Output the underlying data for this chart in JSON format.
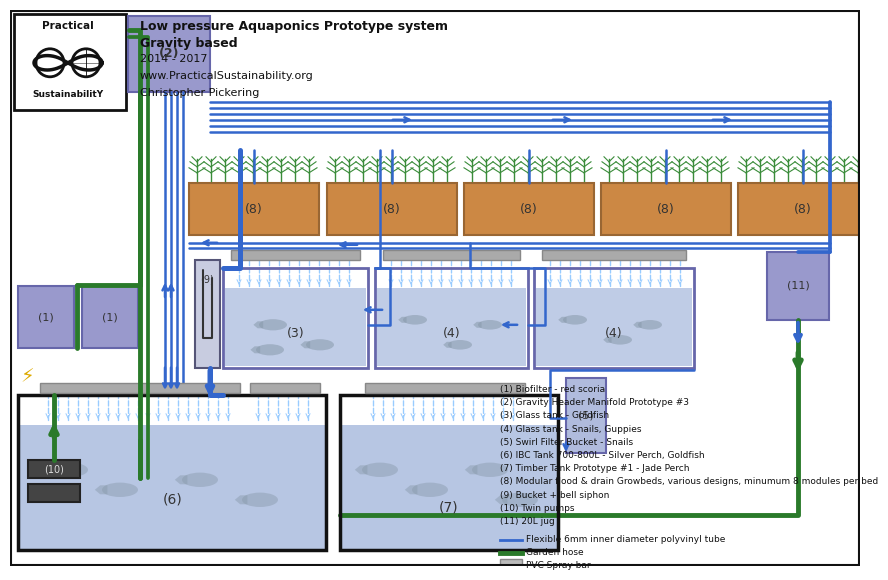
{
  "title_lines": [
    "Low pressure Aquaponics Prototype system",
    "Gravity based",
    "2014 - 2017",
    "www.PracticalSustainability.org",
    "Christopher Pickering"
  ],
  "legend_items": [
    "(1) Biofilter - red scoria",
    "(2) Gravity Header Manifold Prototype #3",
    "(3) Glass tank - Goldfish",
    "(4) Glass tank - Snails, Guppies",
    "(5) Swirl Filter Bucket - Snails",
    "(6) IBC Tank 700-800L - Silver Perch, Goldfish",
    "(7) Timber Tank Prototype #1 - Jade Perch",
    "(8) Modular flood & drain Growbeds, various designs, minumum 8 modules per bed",
    "(9) Bucket + bell siphon",
    "(10) Twin pumps",
    "(11) 20L jug"
  ],
  "colors": {
    "bg": "#ffffff",
    "blue": "#3366cc",
    "green": "#2a7a2a",
    "purple": "#9999cc",
    "purple_border": "#6666aa",
    "tan": "#cc8844",
    "tan_border": "#996633",
    "fish_fill": "#c0c8e8",
    "fish_border": "#6666aa",
    "spray": "#aaaaaa",
    "spray_border": "#888888",
    "water_blue": "#b0c0e0",
    "light_spray": "#99ccff",
    "ibc_fill": "#c0c8e8",
    "timber_border": "#555533",
    "timber_fill": "#c0c8e8",
    "swirl_fill": "#b0bbdd",
    "black": "#111111",
    "fish_gray": "#8899aa",
    "pump_dark": "#444444",
    "logo_border": "#111111"
  }
}
